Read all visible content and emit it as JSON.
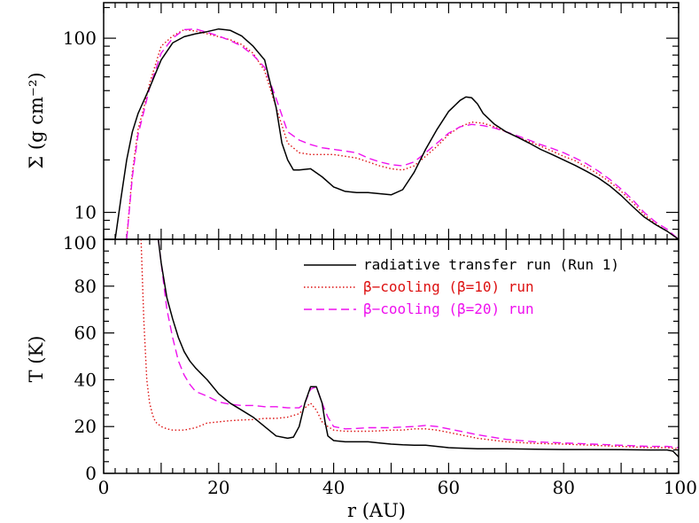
{
  "chart_data": [
    {
      "type": "line",
      "panel": "top",
      "ylabel": "Σ (g cm⁻²)",
      "yscale": "log",
      "xlim": [
        0,
        100
      ],
      "ylim": [
        7,
        160
      ],
      "yticks": [
        {
          "value": 10,
          "label": "10"
        },
        {
          "value": 100,
          "label": "100"
        }
      ],
      "series": [
        {
          "name": "radiative transfer run (Run 1)",
          "color": "#000000",
          "dash": "solid",
          "x": [
            2,
            3,
            4,
            5,
            6,
            8,
            10,
            12,
            14,
            16,
            18,
            20,
            22,
            24,
            26,
            28,
            30,
            31,
            32,
            33,
            34,
            36,
            38,
            40,
            42,
            44,
            46,
            48,
            50,
            52,
            54,
            56,
            58,
            60,
            62,
            63,
            64,
            65,
            66,
            68,
            70,
            72,
            74,
            76,
            78,
            80,
            82,
            84,
            86,
            88,
            90,
            92,
            94,
            96,
            98,
            100
          ],
          "values": [
            7,
            12,
            20,
            29,
            37,
            52,
            75,
            94,
            102,
            106,
            109,
            113,
            111,
            103,
            90,
            75,
            40,
            25,
            20,
            17.5,
            17.5,
            17.8,
            16,
            14,
            13.2,
            13,
            13,
            12.8,
            12.6,
            13.5,
            17,
            23,
            30,
            38,
            44,
            46,
            45.5,
            42,
            37,
            32,
            29,
            27,
            25,
            23,
            21.5,
            20,
            18.6,
            17.2,
            15.8,
            14.2,
            12.5,
            10.8,
            9.4,
            8.5,
            7.8,
            7
          ]
        },
        {
          "name": "β−cooling (β=10) run",
          "color": "#dd1111",
          "dash": "dotted",
          "x": [
            4,
            5,
            6,
            7,
            8,
            10,
            12,
            14,
            16,
            18,
            20,
            22,
            24,
            26,
            28,
            30,
            32,
            34,
            36,
            38,
            40,
            42,
            44,
            46,
            48,
            50,
            52,
            54,
            56,
            58,
            60,
            62,
            64,
            66,
            68,
            70,
            72,
            74,
            76,
            78,
            80,
            82,
            84,
            86,
            88,
            90,
            92,
            94,
            96,
            98,
            100
          ],
          "values": [
            7,
            17,
            30,
            40,
            55,
            90,
            103,
            112,
            110,
            106,
            102,
            98,
            92,
            82,
            65,
            40,
            25,
            22,
            21.5,
            21.5,
            21.5,
            21,
            20.5,
            19.5,
            18.5,
            17.8,
            17.5,
            18.5,
            21,
            24,
            28,
            31,
            33,
            32.5,
            31,
            29,
            27,
            25.5,
            24,
            22.5,
            21,
            19.8,
            18.2,
            16.6,
            15,
            13.2,
            11.4,
            9.7,
            8.6,
            7.8,
            7
          ]
        },
        {
          "name": "β−cooling (β=20) run",
          "color": "#ee11ee",
          "dash": "dashed",
          "x": [
            4,
            5,
            6,
            7,
            8,
            10,
            12,
            14,
            16,
            18,
            20,
            22,
            24,
            26,
            28,
            30,
            32,
            34,
            36,
            38,
            40,
            42,
            44,
            46,
            48,
            50,
            52,
            54,
            56,
            58,
            60,
            62,
            64,
            66,
            68,
            70,
            72,
            74,
            76,
            78,
            80,
            82,
            84,
            86,
            88,
            90,
            92,
            94,
            96,
            98,
            100
          ],
          "values": [
            7,
            16,
            28,
            38,
            52,
            82,
            100,
            112,
            113,
            108,
            103,
            97,
            90,
            80,
            68,
            45,
            29,
            26,
            24.5,
            23.5,
            23,
            22.5,
            22,
            20.5,
            19.5,
            18.8,
            18.5,
            19.5,
            22,
            25,
            28.5,
            31,
            32,
            31.5,
            30.5,
            29,
            27.5,
            26,
            24.5,
            23.3,
            22,
            20.5,
            19,
            17.3,
            15.5,
            13.6,
            11.8,
            10,
            8.8,
            8,
            7
          ]
        }
      ]
    },
    {
      "type": "line",
      "panel": "bottom",
      "xlabel": "r (AU)",
      "ylabel": "T (K)",
      "xlim": [
        0,
        100
      ],
      "ylim": [
        0,
        100
      ],
      "xticks": [
        {
          "value": 0,
          "label": "0"
        },
        {
          "value": 20,
          "label": "20"
        },
        {
          "value": 40,
          "label": "40"
        },
        {
          "value": 60,
          "label": "60"
        },
        {
          "value": 80,
          "label": "80"
        },
        {
          "value": 100,
          "label": "100"
        }
      ],
      "yticks": [
        {
          "value": 0,
          "label": "0"
        },
        {
          "value": 20,
          "label": "20"
        },
        {
          "value": 40,
          "label": "40"
        },
        {
          "value": 60,
          "label": "60"
        },
        {
          "value": 80,
          "label": "80"
        },
        {
          "value": 100,
          "label": "100"
        }
      ],
      "legend_position": "top-right",
      "series": [
        {
          "name": "radiative transfer run (Run 1)",
          "color": "#000000",
          "dash": "solid",
          "x": [
            9.5,
            10,
            11,
            12,
            13,
            14,
            15,
            16,
            18,
            20,
            22,
            24,
            26,
            28,
            30,
            32,
            33,
            34,
            35,
            36,
            37,
            38,
            38.5,
            39,
            40,
            42,
            44,
            46,
            48,
            50,
            52,
            54,
            56,
            58,
            60,
            65,
            70,
            75,
            80,
            85,
            90,
            95,
            98,
            99,
            100
          ],
          "values": [
            100,
            90,
            75,
            66,
            58,
            52,
            48,
            45,
            40,
            34,
            30,
            27,
            24,
            20,
            16,
            15,
            15.5,
            20,
            30,
            37,
            37,
            30,
            22,
            16,
            14,
            13.5,
            13.5,
            13.5,
            13,
            12.5,
            12.2,
            12,
            12,
            11.5,
            11,
            10.5,
            10.5,
            10.3,
            10.2,
            10.2,
            10.1,
            10,
            10,
            9.5,
            7
          ]
        },
        {
          "name": "β−cooling (β=10) run",
          "color": "#dd1111",
          "dash": "dotted",
          "x": [
            6.5,
            7,
            7.5,
            8,
            8.5,
            9,
            10,
            11,
            12,
            13,
            14,
            15,
            16,
            17,
            18,
            20,
            22,
            24,
            26,
            28,
            30,
            32,
            34,
            35,
            36,
            37,
            38,
            39,
            40,
            42,
            44,
            46,
            48,
            50,
            52,
            54,
            56,
            58,
            60,
            65,
            70,
            75,
            80,
            85,
            90,
            95,
            98,
            100
          ],
          "values": [
            100,
            65,
            40,
            30,
            25,
            22,
            20,
            19,
            18.5,
            18.5,
            18.5,
            19,
            19.5,
            20.5,
            21.5,
            22,
            22.5,
            22.8,
            23,
            23.5,
            23.5,
            24,
            25.5,
            28,
            30,
            27,
            22,
            20,
            18.5,
            18,
            18,
            18,
            18.2,
            18.5,
            18.5,
            19,
            19,
            18.5,
            17.5,
            15,
            13.5,
            12.8,
            12.5,
            12,
            11.5,
            11,
            11,
            10.5
          ]
        },
        {
          "name": "β−cooling (β=20) run",
          "color": "#ee11ee",
          "dash": "dashed",
          "x": [
            9.5,
            10,
            10.5,
            11,
            12,
            13,
            14,
            15,
            16,
            18,
            20,
            22,
            24,
            26,
            28,
            30,
            32,
            34,
            35,
            36,
            37,
            38,
            39,
            40,
            42,
            44,
            46,
            48,
            50,
            52,
            54,
            56,
            58,
            60,
            65,
            70,
            75,
            80,
            85,
            90,
            95,
            98,
            100
          ],
          "values": [
            100,
            90,
            80,
            70,
            58,
            48,
            42,
            38,
            35,
            33,
            30.5,
            29.5,
            29,
            29,
            28.5,
            28.5,
            28,
            28,
            30,
            36,
            37,
            30,
            24,
            20,
            19,
            19.2,
            19.5,
            19.5,
            19.5,
            19.8,
            20,
            20.5,
            20,
            19,
            16.5,
            14.5,
            13.5,
            13,
            12.5,
            12,
            11.5,
            11.5,
            11
          ]
        }
      ]
    }
  ]
}
